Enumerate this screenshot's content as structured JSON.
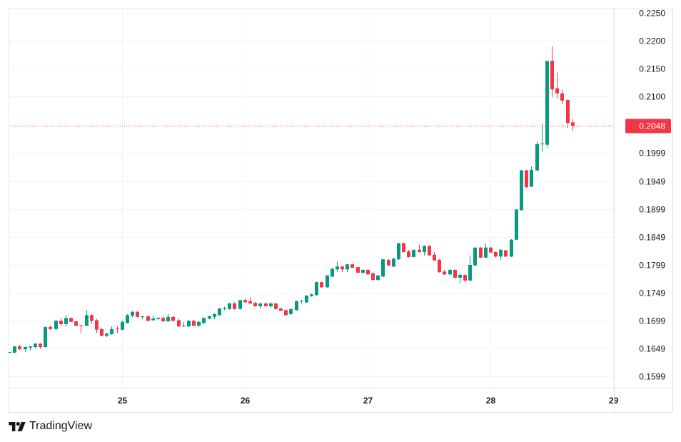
{
  "chart_data": {
    "type": "candlestick",
    "title": "",
    "interval": "1h",
    "colors": {
      "up": "#089981",
      "down": "#F23645",
      "grid": "#F0F3FA",
      "frame": "#E0E3EB"
    },
    "ylim": [
      0.158,
      0.2258
    ],
    "y_ticks": [
      "0.2250",
      "0.2200",
      "0.2150",
      "0.2100",
      "0.1999",
      "0.1949",
      "0.1899",
      "0.1849",
      "0.1799",
      "0.1749",
      "0.1699",
      "0.1649",
      "0.1599"
    ],
    "x_ticks": [
      {
        "label": "25",
        "hour": 24
      },
      {
        "label": "26",
        "hour": 48
      },
      {
        "label": "27",
        "hour": 72
      },
      {
        "label": "28",
        "hour": 96
      },
      {
        "label": "29",
        "hour": 120
      }
    ],
    "first_candle_hour": 2,
    "last_price": {
      "value": 0.2048,
      "label": "0.2048"
    },
    "ohlc": [
      [
        0.1642,
        0.1643,
        0.1641,
        0.1643
      ],
      [
        0.1642,
        0.1654,
        0.1641,
        0.1653
      ],
      [
        0.1653,
        0.1656,
        0.1647,
        0.1648
      ],
      [
        0.1648,
        0.1653,
        0.1643,
        0.1652
      ],
      [
        0.1651,
        0.1654,
        0.1646,
        0.1653
      ],
      [
        0.1652,
        0.1659,
        0.165,
        0.1658
      ],
      [
        0.1658,
        0.1659,
        0.1649,
        0.1652
      ],
      [
        0.1652,
        0.1688,
        0.1651,
        0.1688
      ],
      [
        0.1688,
        0.169,
        0.1683,
        0.1684
      ],
      [
        0.1684,
        0.17,
        0.1682,
        0.1699
      ],
      [
        0.1699,
        0.1704,
        0.1689,
        0.1693
      ],
      [
        0.1693,
        0.1709,
        0.1688,
        0.1704
      ],
      [
        0.1704,
        0.1705,
        0.1696,
        0.1697
      ],
      [
        0.1698,
        0.1699,
        0.1689,
        0.169
      ],
      [
        0.1691,
        0.1692,
        0.1677,
        0.169
      ],
      [
        0.169,
        0.1718,
        0.1689,
        0.1709
      ],
      [
        0.1709,
        0.1711,
        0.1694,
        0.1699
      ],
      [
        0.17,
        0.1702,
        0.1677,
        0.1683
      ],
      [
        0.1684,
        0.1686,
        0.1671,
        0.1672
      ],
      [
        0.1672,
        0.1677,
        0.167,
        0.1676
      ],
      [
        0.1675,
        0.1689,
        0.1674,
        0.1684
      ],
      [
        0.1685,
        0.1689,
        0.1677,
        0.1684
      ],
      [
        0.1683,
        0.1699,
        0.1682,
        0.1697
      ],
      [
        0.1695,
        0.1711,
        0.1694,
        0.1709
      ],
      [
        0.1708,
        0.1716,
        0.1705,
        0.1715
      ],
      [
        0.1715,
        0.1716,
        0.1705,
        0.1706
      ],
      [
        0.1706,
        0.1708,
        0.1702,
        0.1707
      ],
      [
        0.1707,
        0.1708,
        0.1698,
        0.1699
      ],
      [
        0.17,
        0.1708,
        0.1699,
        0.1703
      ],
      [
        0.1702,
        0.1705,
        0.17,
        0.1704
      ],
      [
        0.1704,
        0.1707,
        0.1697,
        0.1698
      ],
      [
        0.1698,
        0.1711,
        0.1697,
        0.1706
      ],
      [
        0.1706,
        0.1707,
        0.1698,
        0.1699
      ],
      [
        0.17,
        0.1703,
        0.1688,
        0.1689
      ],
      [
        0.1689,
        0.1697,
        0.1688,
        0.169
      ],
      [
        0.1689,
        0.17,
        0.1688,
        0.1699
      ],
      [
        0.1699,
        0.17,
        0.1689,
        0.169
      ],
      [
        0.169,
        0.1698,
        0.1688,
        0.1697
      ],
      [
        0.1695,
        0.1705,
        0.1693,
        0.1704
      ],
      [
        0.1703,
        0.1708,
        0.1702,
        0.1707
      ],
      [
        0.1706,
        0.1712,
        0.1702,
        0.1711
      ],
      [
        0.1709,
        0.1722,
        0.1708,
        0.1721
      ],
      [
        0.172,
        0.1724,
        0.1718,
        0.1721
      ],
      [
        0.172,
        0.1731,
        0.1719,
        0.173
      ],
      [
        0.173,
        0.1732,
        0.1719,
        0.172
      ],
      [
        0.172,
        0.1736,
        0.1719,
        0.1736
      ],
      [
        0.1736,
        0.1738,
        0.1731,
        0.1732
      ],
      [
        0.1734,
        0.1741,
        0.1729,
        0.173
      ],
      [
        0.1731,
        0.1733,
        0.1724,
        0.1725
      ],
      [
        0.1725,
        0.1731,
        0.1721,
        0.173
      ],
      [
        0.173,
        0.1731,
        0.1724,
        0.1725
      ],
      [
        0.1725,
        0.1732,
        0.1722,
        0.173
      ],
      [
        0.173,
        0.1731,
        0.1719,
        0.172
      ],
      [
        0.1721,
        0.1722,
        0.1716,
        0.1717
      ],
      [
        0.1718,
        0.1719,
        0.1708,
        0.1709
      ],
      [
        0.1711,
        0.1721,
        0.1709,
        0.172
      ],
      [
        0.1718,
        0.1735,
        0.1717,
        0.1734
      ],
      [
        0.1734,
        0.1736,
        0.173,
        0.1735
      ],
      [
        0.1732,
        0.1745,
        0.1731,
        0.1744
      ],
      [
        0.1743,
        0.1748,
        0.1742,
        0.1746
      ],
      [
        0.1745,
        0.1769,
        0.1744,
        0.1768
      ],
      [
        0.1768,
        0.1769,
        0.1758,
        0.1759
      ],
      [
        0.1759,
        0.1781,
        0.1758,
        0.178
      ],
      [
        0.1778,
        0.1793,
        0.1777,
        0.1792
      ],
      [
        0.1791,
        0.1805,
        0.1787,
        0.1796
      ],
      [
        0.1796,
        0.1797,
        0.1786,
        0.1791
      ],
      [
        0.1791,
        0.1801,
        0.1786,
        0.18
      ],
      [
        0.18,
        0.1801,
        0.1793,
        0.1794
      ],
      [
        0.1795,
        0.1796,
        0.1784,
        0.1785
      ],
      [
        0.1785,
        0.1791,
        0.1783,
        0.179
      ],
      [
        0.179,
        0.1791,
        0.1781,
        0.1782
      ],
      [
        0.1784,
        0.1785,
        0.1771,
        0.1772
      ],
      [
        0.1772,
        0.1781,
        0.177,
        0.178
      ],
      [
        0.1778,
        0.181,
        0.1777,
        0.1809
      ],
      [
        0.1808,
        0.1809,
        0.1797,
        0.1798
      ],
      [
        0.1796,
        0.1812,
        0.1795,
        0.181
      ],
      [
        0.1809,
        0.1838,
        0.1808,
        0.1838
      ],
      [
        0.1838,
        0.1839,
        0.1821,
        0.1822
      ],
      [
        0.1823,
        0.1826,
        0.1812,
        0.1813
      ],
      [
        0.1813,
        0.1826,
        0.1813,
        0.1826
      ],
      [
        0.1826,
        0.1835,
        0.1821,
        0.1822
      ],
      [
        0.1822,
        0.1834,
        0.1816,
        0.1833
      ],
      [
        0.1833,
        0.1834,
        0.1815,
        0.1816
      ],
      [
        0.1817,
        0.1822,
        0.1806,
        0.1807
      ],
      [
        0.1808,
        0.1809,
        0.1785,
        0.1786
      ],
      [
        0.1787,
        0.179,
        0.1781,
        0.1782
      ],
      [
        0.1782,
        0.1791,
        0.178,
        0.179
      ],
      [
        0.179,
        0.1791,
        0.1775,
        0.1776
      ],
      [
        0.1776,
        0.1785,
        0.1766,
        0.1781
      ],
      [
        0.1781,
        0.1783,
        0.1768,
        0.1771
      ],
      [
        0.1771,
        0.1816,
        0.177,
        0.1799
      ],
      [
        0.1798,
        0.183,
        0.1797,
        0.183
      ],
      [
        0.183,
        0.1831,
        0.1811,
        0.1812
      ],
      [
        0.1812,
        0.1837,
        0.1811,
        0.183
      ],
      [
        0.183,
        0.1831,
        0.182,
        0.1821
      ],
      [
        0.1822,
        0.1823,
        0.1812,
        0.1814
      ],
      [
        0.1814,
        0.1827,
        0.1808,
        0.1826
      ],
      [
        0.1825,
        0.1826,
        0.1813,
        0.1814
      ],
      [
        0.1814,
        0.1845,
        0.1813,
        0.1844
      ],
      [
        0.1844,
        0.1899,
        0.1843,
        0.1898
      ],
      [
        0.1897,
        0.1969,
        0.1896,
        0.1968
      ],
      [
        0.1968,
        0.1969,
        0.1937,
        0.1938
      ],
      [
        0.1939,
        0.1975,
        0.1938,
        0.1969
      ],
      [
        0.1968,
        0.202,
        0.1967,
        0.2015
      ],
      [
        0.2015,
        0.2052,
        0.2002,
        0.2016
      ],
      [
        0.2014,
        0.2164,
        0.2009,
        0.2164
      ],
      [
        0.2164,
        0.219,
        0.2099,
        0.2113
      ],
      [
        0.2115,
        0.2143,
        0.2097,
        0.2106
      ],
      [
        0.2106,
        0.2113,
        0.2086,
        0.2093
      ],
      [
        0.2094,
        0.2095,
        0.2044,
        0.2053
      ],
      [
        0.2054,
        0.206,
        0.2038,
        0.2048
      ]
    ]
  },
  "branding": {
    "logo_text": "TradingView"
  }
}
